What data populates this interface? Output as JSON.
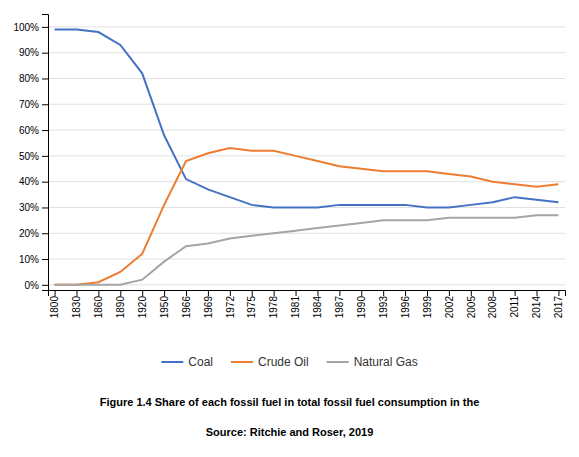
{
  "chart_data": {
    "type": "line",
    "categories": [
      "1800",
      "1830",
      "1860",
      "1890",
      "1920",
      "1950",
      "1966",
      "1969",
      "1972",
      "1975",
      "1978",
      "1981",
      "1984",
      "1987",
      "1990",
      "1993",
      "1996",
      "1999",
      "2002",
      "2005",
      "2008",
      "2011",
      "2014",
      "2017"
    ],
    "series": [
      {
        "name": "Coal",
        "color": "#4472C4",
        "values": [
          99,
          99,
          98,
          93,
          82,
          58,
          41,
          37,
          34,
          31,
          30,
          30,
          30,
          31,
          31,
          31,
          31,
          30,
          30,
          31,
          32,
          34,
          33,
          32
        ]
      },
      {
        "name": "Crude Oil",
        "color": "#ED7D31",
        "values": [
          0,
          0,
          1,
          5,
          12,
          31,
          48,
          51,
          53,
          52,
          52,
          50,
          48,
          46,
          45,
          44,
          44,
          44,
          43,
          42,
          40,
          39,
          38,
          39
        ]
      },
      {
        "name": "Natural Gas",
        "color": "#A5A5A5",
        "values": [
          0,
          0,
          0,
          0,
          2,
          9,
          15,
          16,
          18,
          19,
          20,
          21,
          22,
          23,
          24,
          25,
          25,
          25,
          26,
          26,
          26,
          26,
          27,
          27
        ]
      }
    ],
    "ylim": [
      -2,
      105
    ],
    "yticks": [
      {
        "value": 0,
        "label": "0%"
      },
      {
        "value": 10,
        "label": "10%"
      },
      {
        "value": 20,
        "label": "20%"
      },
      {
        "value": 30,
        "label": "30%"
      },
      {
        "value": 40,
        "label": "40%"
      },
      {
        "value": 50,
        "label": "50%"
      },
      {
        "value": 60,
        "label": "60%"
      },
      {
        "value": 70,
        "label": "70%"
      },
      {
        "value": 80,
        "label": "80%"
      },
      {
        "value": 90,
        "label": "90%"
      },
      {
        "value": 100,
        "label": "100%"
      }
    ],
    "grid": true,
    "legend": "bottom",
    "annotations": [
      "Figure 1.4 Share of each fossil fuel in total fossil fuel consumption in the",
      "Source: Ritchie and Roser, 2019"
    ]
  }
}
